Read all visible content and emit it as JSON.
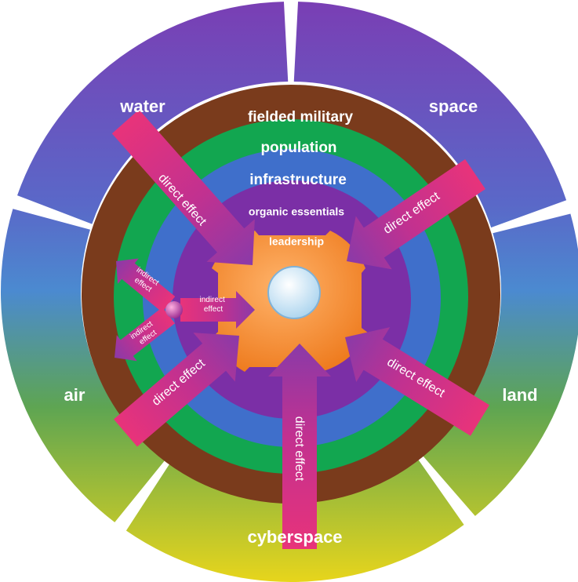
{
  "domains": [
    "water",
    "space",
    "air",
    "land",
    "cyberspace"
  ],
  "rings": [
    "fielded military",
    "population",
    "infrastructure",
    "organic essentials",
    "leadership"
  ],
  "direct_arrows": [
    "direct effect",
    "direct effect",
    "direct effect",
    "direct effect",
    "direct effect"
  ],
  "indirect_arrows": [
    [
      "indirect",
      "effect"
    ],
    [
      "indirect",
      "effect"
    ],
    [
      "indirect",
      "effect"
    ]
  ]
}
